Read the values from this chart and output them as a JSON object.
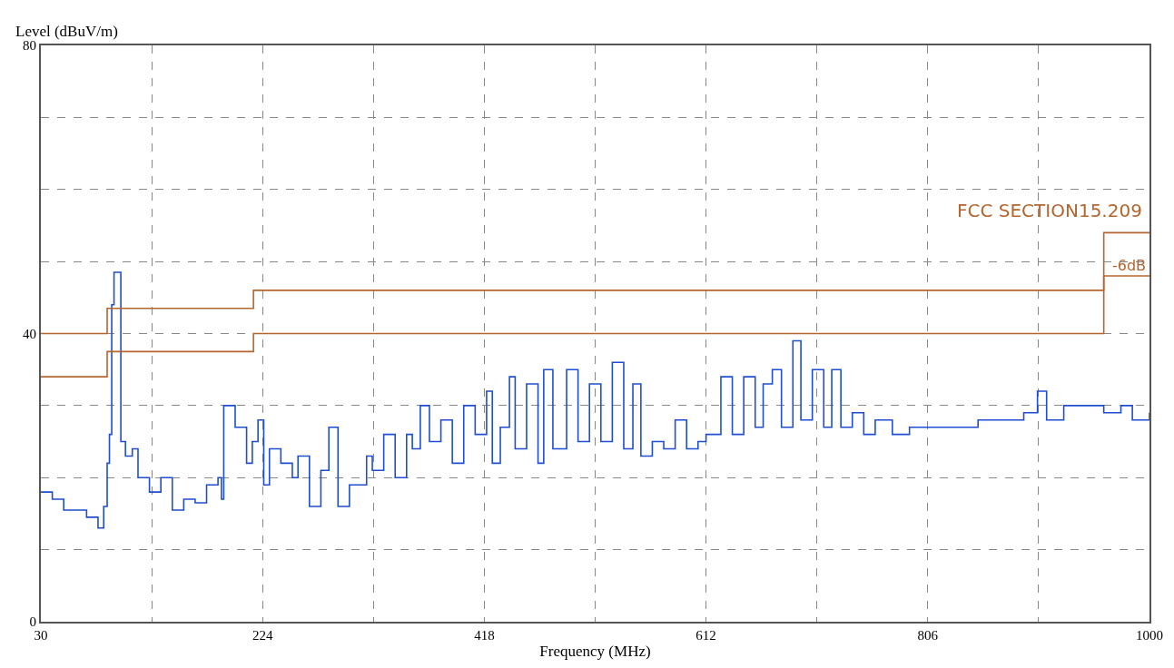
{
  "chart_data": {
    "type": "step",
    "xlabel": "Frequency (MHz)",
    "ylabel": "Level (dBuV/m)",
    "xlim": [
      30,
      1000
    ],
    "ylim": [
      0,
      80
    ],
    "xticks": [
      30,
      {
        "value": 127,
        "label": null
      },
      224,
      {
        "value": 321,
        "label": null
      },
      418,
      {
        "value": 515,
        "label": null
      },
      612,
      {
        "value": 709,
        "label": null
      },
      806,
      {
        "value": 903,
        "label": null
      },
      1000
    ],
    "yticks": [
      0,
      {
        "value": 10,
        "label": null
      },
      {
        "value": 20,
        "label": null
      },
      {
        "value": 30,
        "label": null
      },
      40,
      {
        "value": 50,
        "label": null
      },
      {
        "value": 60,
        "label": null
      },
      {
        "value": 70,
        "label": null
      },
      80
    ],
    "grid": true,
    "legend": false,
    "line_style": "solid",
    "marker": "none",
    "series": [
      {
        "color": "#1f4fd0",
        "x": [
          30,
          40,
          50,
          70,
          80,
          85,
          88,
          90,
          92,
          94,
          98,
          100,
          104,
          110,
          115,
          125,
          135,
          145,
          155,
          165,
          175,
          185,
          188,
          190,
          200,
          210,
          215,
          220,
          225,
          230,
          240,
          250,
          255,
          265,
          275,
          282,
          290,
          300,
          315,
          320,
          330,
          340,
          350,
          355,
          362,
          370,
          380,
          390,
          400,
          410,
          420,
          425,
          432,
          440,
          445,
          455,
          465,
          470,
          478,
          490,
          500,
          510,
          520,
          530,
          540,
          548,
          555,
          565,
          575,
          585,
          595,
          605,
          612,
          625,
          635,
          645,
          655,
          662,
          670,
          678,
          688,
          695,
          705,
          715,
          722,
          730,
          740,
          750,
          760,
          775,
          790,
          810,
          830,
          850,
          870,
          890,
          902,
          910,
          925,
          940,
          960,
          975,
          985,
          1000
        ],
        "values": [
          18,
          17,
          15.5,
          14.5,
          13,
          16,
          22,
          26,
          44,
          48.5,
          48.5,
          25,
          23,
          24,
          20,
          18,
          20,
          15.5,
          17,
          16.5,
          19,
          20,
          17,
          30,
          27,
          22,
          25,
          28,
          19,
          24,
          22,
          20,
          23,
          16,
          21,
          27,
          16,
          19,
          23,
          21,
          26,
          20,
          26,
          24,
          30,
          25,
          28,
          22,
          30,
          26,
          32,
          22,
          27,
          34,
          24,
          33,
          22,
          35,
          24,
          35,
          25,
          33,
          25,
          36,
          24,
          33,
          23,
          25,
          24,
          28,
          24,
          25,
          26,
          34,
          26,
          34,
          27,
          33,
          35,
          27,
          39,
          28,
          35,
          27,
          35,
          27,
          29,
          26,
          28,
          26,
          27,
          27,
          27,
          28,
          28,
          29,
          32,
          28,
          30,
          30,
          29,
          30,
          28,
          29
        ]
      },
      {
        "color": "#b5652e",
        "x": [
          30,
          88,
          216,
          960,
          1000
        ],
        "values": [
          40,
          43.5,
          46,
          54,
          54
        ]
      },
      {
        "color": "#b5652e",
        "x": [
          30,
          88,
          216,
          960,
          1000
        ],
        "values": [
          34,
          37.5,
          40,
          48,
          48
        ]
      }
    ],
    "annotations": [
      {
        "text": "FCC SECTION15.209",
        "x": 1000,
        "y": 54
      },
      {
        "text": "-6dB",
        "x": 1000,
        "y": 48
      }
    ]
  }
}
